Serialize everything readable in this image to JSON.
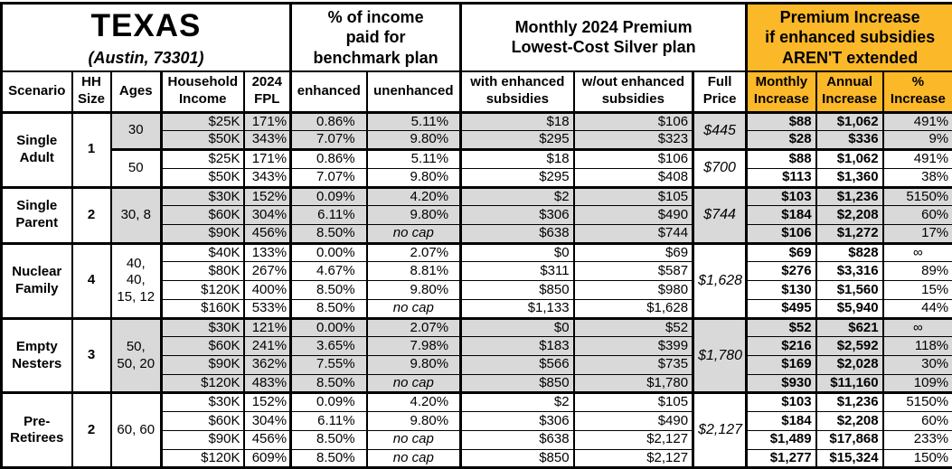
{
  "title": {
    "state": "TEXAS",
    "location": "(Austin, 73301)"
  },
  "group_headers": {
    "income_pct": "% of income\npaid for\nbenchmark plan",
    "premium": "Monthly 2024 Premium\nLowest-Cost Silver plan",
    "increase": "Premium Increase\nif enhanced subsidies\nAREN'T extended"
  },
  "columns": [
    "Scenario",
    "HH\nSize",
    "Ages",
    "Household\nIncome",
    "2024\nFPL",
    "enhanced",
    "unenhanced",
    "with enhanced\nsubsidies",
    "w/out enhanced\nsubsidies",
    "Full\nPrice",
    "Monthly\nIncrease",
    "Annual\nIncrease",
    "%\nIncrease"
  ],
  "colors": {
    "accent_orange": "#fbb829",
    "shade_gray": "#d9d9d9",
    "border_black": "#000000"
  },
  "scenarios": [
    {
      "name": "Single Adult",
      "hh_size": "1",
      "age_groups": [
        {
          "ages": "30",
          "shaded": true,
          "full_price": "$445",
          "rows": [
            {
              "income": "$25K",
              "fpl": "171%",
              "enhanced": "0.86%",
              "unenhanced": "5.11%",
              "with_sub": "$18",
              "wout_sub": "$106",
              "monthly_inc": "$88",
              "annual_inc": "$1,062",
              "pct_inc": "491%"
            },
            {
              "income": "$50K",
              "fpl": "343%",
              "enhanced": "7.07%",
              "unenhanced": "9.80%",
              "with_sub": "$295",
              "wout_sub": "$323",
              "monthly_inc": "$28",
              "annual_inc": "$336",
              "pct_inc": "9%"
            }
          ]
        },
        {
          "ages": "50",
          "shaded": false,
          "full_price": "$700",
          "rows": [
            {
              "income": "$25K",
              "fpl": "171%",
              "enhanced": "0.86%",
              "unenhanced": "5.11%",
              "with_sub": "$18",
              "wout_sub": "$106",
              "monthly_inc": "$88",
              "annual_inc": "$1,062",
              "pct_inc": "491%"
            },
            {
              "income": "$50K",
              "fpl": "343%",
              "enhanced": "7.07%",
              "unenhanced": "9.80%",
              "with_sub": "$295",
              "wout_sub": "$408",
              "monthly_inc": "$113",
              "annual_inc": "$1,360",
              "pct_inc": "38%"
            }
          ]
        }
      ]
    },
    {
      "name": "Single Parent",
      "hh_size": "2",
      "age_groups": [
        {
          "ages": "30, 8",
          "shaded": true,
          "full_price": "$744",
          "rows": [
            {
              "income": "$30K",
              "fpl": "152%",
              "enhanced": "0.09%",
              "unenhanced": "4.20%",
              "with_sub": "$2",
              "wout_sub": "$105",
              "monthly_inc": "$103",
              "annual_inc": "$1,236",
              "pct_inc": "5150%"
            },
            {
              "income": "$60K",
              "fpl": "304%",
              "enhanced": "6.11%",
              "unenhanced": "9.80%",
              "with_sub": "$306",
              "wout_sub": "$490",
              "monthly_inc": "$184",
              "annual_inc": "$2,208",
              "pct_inc": "60%"
            },
            {
              "income": "$90K",
              "fpl": "456%",
              "enhanced": "8.50%",
              "unenhanced": "no cap",
              "with_sub": "$638",
              "wout_sub": "$744",
              "monthly_inc": "$106",
              "annual_inc": "$1,272",
              "pct_inc": "17%"
            }
          ]
        }
      ]
    },
    {
      "name": "Nuclear Family",
      "hh_size": "4",
      "age_groups": [
        {
          "ages": "40, 40, 15, 12",
          "shaded": false,
          "full_price": "$1,628",
          "rows": [
            {
              "income": "$40K",
              "fpl": "133%",
              "enhanced": "0.00%",
              "unenhanced": "2.07%",
              "with_sub": "$0",
              "wout_sub": "$69",
              "monthly_inc": "$69",
              "annual_inc": "$828",
              "pct_inc": "∞"
            },
            {
              "income": "$80K",
              "fpl": "267%",
              "enhanced": "4.67%",
              "unenhanced": "8.81%",
              "with_sub": "$311",
              "wout_sub": "$587",
              "monthly_inc": "$276",
              "annual_inc": "$3,316",
              "pct_inc": "89%"
            },
            {
              "income": "$120K",
              "fpl": "400%",
              "enhanced": "8.50%",
              "unenhanced": "9.80%",
              "with_sub": "$850",
              "wout_sub": "$980",
              "monthly_inc": "$130",
              "annual_inc": "$1,560",
              "pct_inc": "15%"
            },
            {
              "income": "$160K",
              "fpl": "533%",
              "enhanced": "8.50%",
              "unenhanced": "no cap",
              "with_sub": "$1,133",
              "wout_sub": "$1,628",
              "monthly_inc": "$495",
              "annual_inc": "$5,940",
              "pct_inc": "44%"
            }
          ]
        }
      ]
    },
    {
      "name": "Empty Nesters",
      "hh_size": "3",
      "age_groups": [
        {
          "ages": "50, 50, 20",
          "shaded": true,
          "full_price": "$1,780",
          "rows": [
            {
              "income": "$30K",
              "fpl": "121%",
              "enhanced": "0.00%",
              "unenhanced": "2.07%",
              "with_sub": "$0",
              "wout_sub": "$52",
              "monthly_inc": "$52",
              "annual_inc": "$621",
              "pct_inc": "∞"
            },
            {
              "income": "$60K",
              "fpl": "241%",
              "enhanced": "3.65%",
              "unenhanced": "7.98%",
              "with_sub": "$183",
              "wout_sub": "$399",
              "monthly_inc": "$216",
              "annual_inc": "$2,592",
              "pct_inc": "118%"
            },
            {
              "income": "$90K",
              "fpl": "362%",
              "enhanced": "7.55%",
              "unenhanced": "9.80%",
              "with_sub": "$566",
              "wout_sub": "$735",
              "monthly_inc": "$169",
              "annual_inc": "$2,028",
              "pct_inc": "30%"
            },
            {
              "income": "$120K",
              "fpl": "483%",
              "enhanced": "8.50%",
              "unenhanced": "no cap",
              "with_sub": "$850",
              "wout_sub": "$1,780",
              "monthly_inc": "$930",
              "annual_inc": "$11,160",
              "pct_inc": "109%"
            }
          ]
        }
      ]
    },
    {
      "name": "Pre-Retirees",
      "hh_size": "2",
      "age_groups": [
        {
          "ages": "60, 60",
          "shaded": false,
          "full_price": "$2,127",
          "rows": [
            {
              "income": "$30K",
              "fpl": "152%",
              "enhanced": "0.09%",
              "unenhanced": "4.20%",
              "with_sub": "$2",
              "wout_sub": "$105",
              "monthly_inc": "$103",
              "annual_inc": "$1,236",
              "pct_inc": "5150%"
            },
            {
              "income": "$60K",
              "fpl": "304%",
              "enhanced": "6.11%",
              "unenhanced": "9.80%",
              "with_sub": "$306",
              "wout_sub": "$490",
              "monthly_inc": "$184",
              "annual_inc": "$2,208",
              "pct_inc": "60%"
            },
            {
              "income": "$90K",
              "fpl": "456%",
              "enhanced": "8.50%",
              "unenhanced": "no cap",
              "with_sub": "$638",
              "wout_sub": "$2,127",
              "monthly_inc": "$1,489",
              "annual_inc": "$17,868",
              "pct_inc": "233%"
            },
            {
              "income": "$120K",
              "fpl": "609%",
              "enhanced": "8.50%",
              "unenhanced": "no cap",
              "with_sub": "$850",
              "wout_sub": "$2,127",
              "monthly_inc": "$1,277",
              "annual_inc": "$15,324",
              "pct_inc": "150%"
            }
          ]
        }
      ]
    }
  ]
}
